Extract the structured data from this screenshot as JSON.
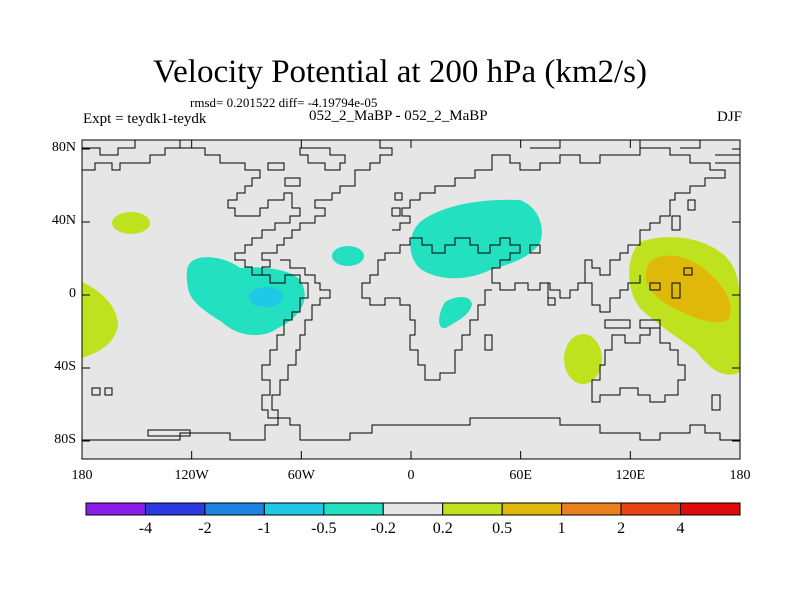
{
  "title": "Velocity Potential at 200 hPa (km2/s)",
  "stats": "rmsd= 0.201522  diff= -4.19794e-05",
  "experiment": "Expt = teydk1-teydk",
  "period": "052_2_MaBP - 052_2_MaBP",
  "season": "DJF",
  "lat_labels": [
    "80N",
    "40N",
    "0",
    "40S",
    "80S"
  ],
  "lon_labels": [
    "180",
    "120W",
    "60W",
    "0",
    "60E",
    "120E",
    "180"
  ],
  "colorbar": {
    "labels": [
      "-4",
      "-2",
      "-1",
      "-0.5",
      "-0.2",
      "0.2",
      "0.5",
      "1",
      "2",
      "4"
    ],
    "colors": [
      "#8a1ee8",
      "#2a3ae0",
      "#1e82e0",
      "#1ec8e6",
      "#22e0c0",
      "#e6e6e6",
      "#bfe21e",
      "#e0b80a",
      "#e8801e",
      "#e84414",
      "#e00a0a"
    ]
  },
  "colors": {
    "background": "#e6e6e6",
    "neg_small": "#22e0c0",
    "neg_medium": "#1ec8e6",
    "pos_small": "#bfe21e",
    "pos_medium": "#e0b80a"
  }
}
